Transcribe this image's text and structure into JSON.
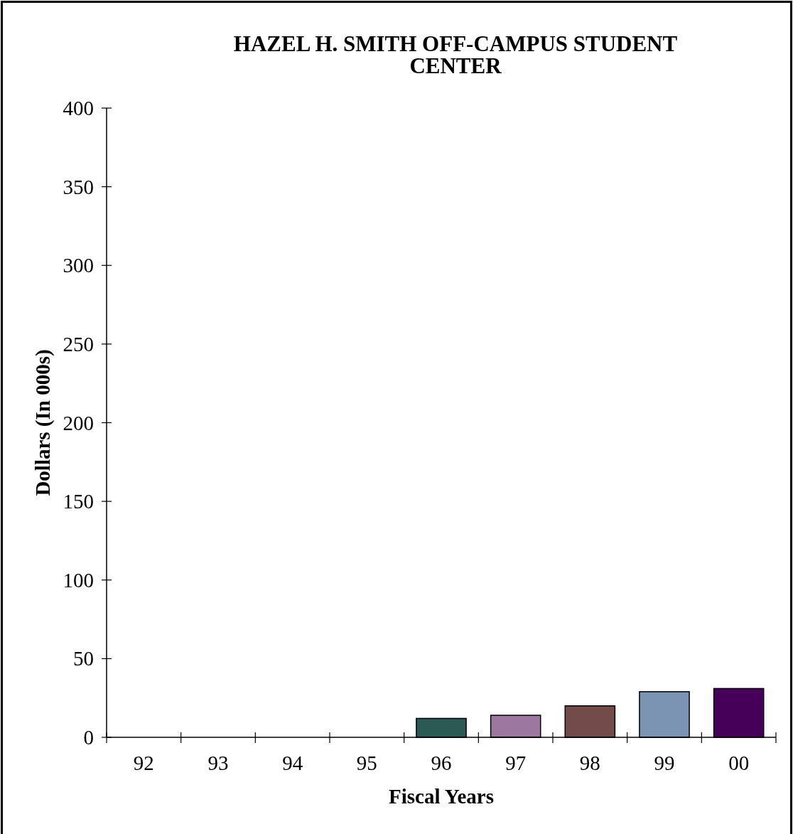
{
  "chart_data": {
    "type": "bar",
    "title": "HAZEL H. SMITH OFF-CAMPUS STUDENT CENTER",
    "xlabel": "Fiscal Years",
    "ylabel": "Dollars (In 000s)",
    "categories": [
      "92",
      "93",
      "94",
      "95",
      "96",
      "97",
      "98",
      "99",
      "00"
    ],
    "values": [
      null,
      null,
      null,
      null,
      12,
      14,
      20,
      29,
      31
    ],
    "colors": [
      null,
      null,
      null,
      null,
      "#2b5954",
      "#9c77a0",
      "#744b4b",
      "#7b94b3",
      "#46005a"
    ],
    "ylim": [
      0,
      400
    ],
    "yticks": [
      0,
      50,
      100,
      150,
      200,
      250,
      300,
      350,
      400
    ]
  }
}
